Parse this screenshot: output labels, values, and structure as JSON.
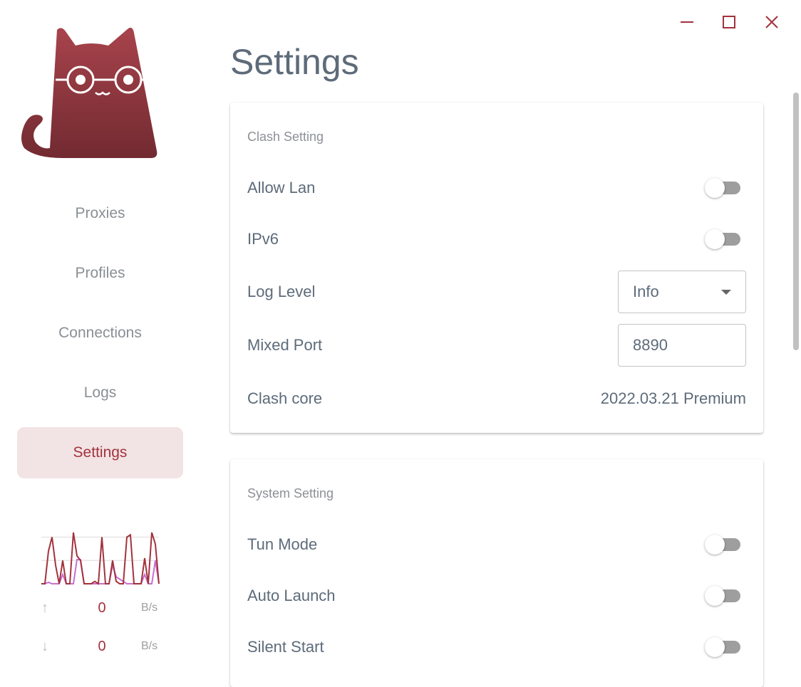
{
  "window": {
    "minimize_icon": "minimize-icon",
    "maximize_icon": "maximize-icon",
    "close_icon": "close-icon"
  },
  "colors": {
    "accent": "#a3323c",
    "nav_active_bg": "#f2e3e4",
    "text": "#5d6b7a",
    "upload_line": "#a3323c",
    "download_line": "#c86fd0"
  },
  "sidebar": {
    "items": [
      {
        "label": "Proxies"
      },
      {
        "label": "Profiles"
      },
      {
        "label": "Connections"
      },
      {
        "label": "Logs"
      },
      {
        "label": "Settings",
        "active": true
      }
    ],
    "traffic": {
      "up_value": "0",
      "up_unit": "B/s",
      "down_value": "0",
      "down_unit": "B/s"
    }
  },
  "page": {
    "title": "Settings"
  },
  "clash": {
    "title": "Clash Setting",
    "allow_lan": {
      "label": "Allow Lan",
      "on": false
    },
    "ipv6": {
      "label": "IPv6",
      "on": false
    },
    "log_level": {
      "label": "Log Level",
      "value": "Info"
    },
    "mixed_port": {
      "label": "Mixed Port",
      "value": "8890"
    },
    "core": {
      "label": "Clash core",
      "value": "2022.03.21 Premium"
    }
  },
  "system": {
    "title": "System Setting",
    "tun_mode": {
      "label": "Tun Mode",
      "on": false
    },
    "auto_launch": {
      "label": "Auto Launch",
      "on": false
    },
    "silent_start": {
      "label": "Silent Start",
      "on": false
    }
  },
  "chart_data": {
    "type": "line",
    "grid": true,
    "ylim": [
      0,
      110
    ],
    "series": [
      {
        "values": [
          0,
          0,
          70,
          100,
          40,
          0,
          50,
          0,
          0,
          110,
          60,
          50,
          0,
          0,
          0,
          5,
          0,
          100,
          0,
          0,
          50,
          5,
          0,
          0,
          100,
          105,
          0,
          0,
          0,
          55,
          0,
          110,
          85,
          0
        ]
      },
      {
        "values": [
          0,
          0,
          3,
          0,
          0,
          0,
          20,
          0,
          0,
          0,
          52,
          52,
          0,
          0,
          0,
          0,
          0,
          0,
          0,
          0,
          40,
          15,
          10,
          5,
          0,
          0,
          0,
          0,
          0,
          20,
          0,
          0,
          50,
          0
        ]
      }
    ]
  }
}
